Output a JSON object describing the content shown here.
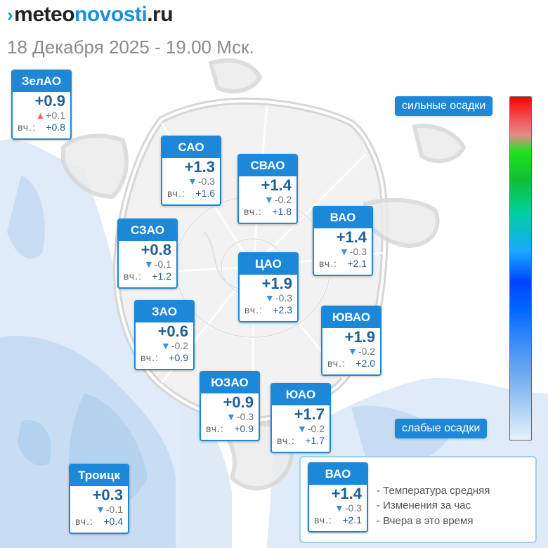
{
  "header": {
    "logo_part1": "meteo",
    "logo_part2": "novosti",
    "logo_part3": ".ru",
    "date": "18 Декабря 2025 - 19.00 Мск."
  },
  "districts": [
    {
      "id": "zelao",
      "name": "ЗелАО",
      "temp": "+0.9",
      "trend": "up",
      "change": "+0.1",
      "yesterday_label": "вч.:",
      "yesterday": "+0.8"
    },
    {
      "id": "sao",
      "name": "САО",
      "temp": "+1.3",
      "trend": "down",
      "change": "-0.3",
      "yesterday_label": "вч.:",
      "yesterday": "+1.6"
    },
    {
      "id": "svao",
      "name": "СВАО",
      "temp": "+1.4",
      "trend": "down",
      "change": "-0.2",
      "yesterday_label": "вч.:",
      "yesterday": "+1.8"
    },
    {
      "id": "szao",
      "name": "СЗАО",
      "temp": "+0.8",
      "trend": "down",
      "change": "-0.1",
      "yesterday_label": "вч.:",
      "yesterday": "+1.2"
    },
    {
      "id": "vao",
      "name": "ВАО",
      "temp": "+1.4",
      "trend": "down",
      "change": "-0.3",
      "yesterday_label": "вч.:",
      "yesterday": "+2.1"
    },
    {
      "id": "cao",
      "name": "ЦАО",
      "temp": "+1.9",
      "trend": "down",
      "change": "-0.3",
      "yesterday_label": "вч.:",
      "yesterday": "+2.3"
    },
    {
      "id": "zao",
      "name": "ЗАО",
      "temp": "+0.6",
      "trend": "down",
      "change": "-0.2",
      "yesterday_label": "вч.:",
      "yesterday": "+0.9"
    },
    {
      "id": "yuvao",
      "name": "ЮВАО",
      "temp": "+1.9",
      "trend": "down",
      "change": "-0.2",
      "yesterday_label": "вч.:",
      "yesterday": "+2.0"
    },
    {
      "id": "yuzao",
      "name": "ЮЗАО",
      "temp": "+0.9",
      "trend": "down",
      "change": "-0.3",
      "yesterday_label": "вч.:",
      "yesterday": "+0.9"
    },
    {
      "id": "yuao",
      "name": "ЮАО",
      "temp": "+1.7",
      "trend": "down",
      "change": "-0.2",
      "yesterday_label": "вч.:",
      "yesterday": "+1.7"
    },
    {
      "id": "troitsk",
      "name": "Троицк",
      "temp": "+0.3",
      "trend": "down",
      "change": "-0.1",
      "yesterday_label": "вч.:",
      "yesterday": "+0.4"
    }
  ],
  "legend": {
    "sample": {
      "name": "ВАО",
      "temp": "+1.4",
      "trend": "down",
      "change": "-0.3",
      "yesterday_label": "вч.:",
      "yesterday": "+2.1"
    },
    "line1": "- Температура средняя",
    "line2": "- Изменения за час",
    "line3": "- Вчера в это время"
  },
  "precip_scale": {
    "top_label": "сильные осадки",
    "bottom_label": "слабые осадки",
    "colors": [
      "#ff0000",
      "#1fe21f",
      "#0044ff",
      "#e5f1fb"
    ]
  },
  "icons": {
    "up": "triangle-up-icon",
    "down": "triangle-down-icon"
  }
}
